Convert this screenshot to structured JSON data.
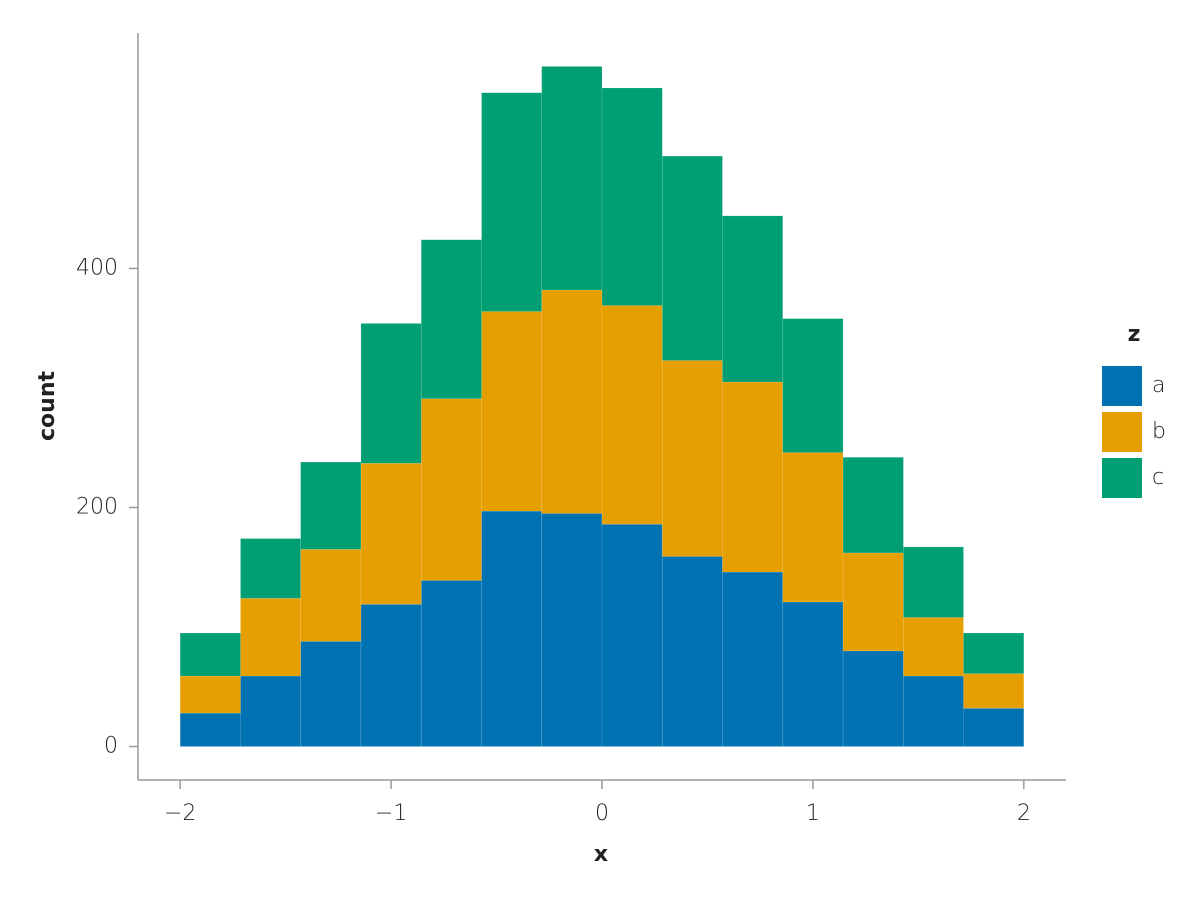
{
  "chart_data": {
    "type": "stacked_histogram",
    "xlabel": "x",
    "ylabel": "count",
    "bins": [
      -2,
      -1.714,
      -1.429,
      -1.143,
      -0.857,
      -0.571,
      -0.286,
      0,
      0.286,
      0.571,
      0.857,
      1.143,
      1.429,
      1.714,
      2
    ],
    "series": [
      {
        "name": "a",
        "color": "#0072b2",
        "values": [
          28,
          59,
          88,
          119,
          139,
          197,
          195,
          186,
          159,
          146,
          121,
          80,
          59,
          32
        ]
      },
      {
        "name": "b",
        "color": "#e69f00",
        "values": [
          31,
          65,
          77,
          118,
          152,
          167,
          187,
          183,
          164,
          159,
          125,
          82,
          49,
          29
        ]
      },
      {
        "name": "c",
        "color": "#009e73",
        "values": [
          36,
          50,
          73,
          117,
          133,
          183,
          187,
          182,
          171,
          139,
          112,
          80,
          59,
          34
        ]
      }
    ],
    "xlim": [
      -2.2,
      2.2
    ],
    "xticks": [
      {
        "value": -2,
        "label": "−2"
      },
      {
        "value": -1,
        "label": "−1"
      },
      0,
      1,
      2
    ],
    "ylim": [
      -28,
      597
    ],
    "yticks": [
      0,
      200,
      400
    ],
    "legend": {
      "title": "z",
      "position": "right"
    },
    "grid": false
  }
}
